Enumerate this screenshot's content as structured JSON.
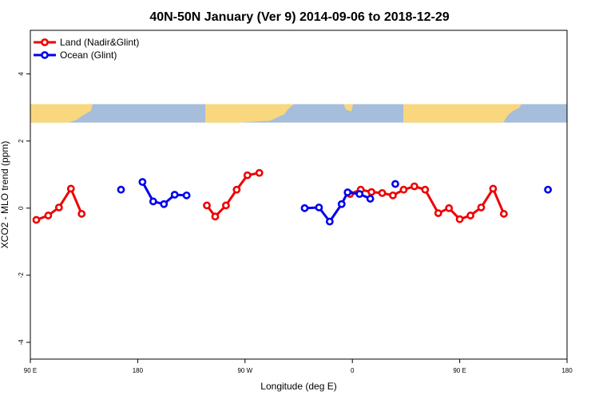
{
  "chart_data": {
    "type": "line",
    "title": "40N-50N January (Ver 9)   2014-09-06 to 2018-12-29",
    "xlabel": "Longitude (deg E)",
    "ylabel": "XCO2 - MLO trend (ppm)",
    "xlim": [
      90,
      540
    ],
    "ylim": [
      -4.5,
      5.3
    ],
    "x_ticks": [
      {
        "value": 90,
        "label": "90 E"
      },
      {
        "value": 180,
        "label": "180"
      },
      {
        "value": 270,
        "label": "90 W"
      },
      {
        "value": 360,
        "label": "0"
      },
      {
        "value": 450,
        "label": "90 E"
      },
      {
        "value": 540,
        "label": "180"
      }
    ],
    "y_ticks": [
      {
        "value": -4,
        "label": "-4"
      },
      {
        "value": -2,
        "label": "-2"
      },
      {
        "value": 0,
        "label": "0"
      },
      {
        "value": 2,
        "label": "2"
      },
      {
        "value": 4,
        "label": "4"
      }
    ],
    "grid": false,
    "legend_position": "top-left",
    "map_strip": {
      "y_range": [
        2.55,
        3.1
      ],
      "land_color": "#f9d77e",
      "ocean_color": "#a6bddb"
    },
    "series": [
      {
        "name": "Land (Nadir&Glint)",
        "color": "#ee0000",
        "segments": [
          [
            [
              95,
              -0.35
            ],
            [
              105,
              -0.22
            ],
            [
              114,
              0.02
            ],
            [
              124,
              0.58
            ],
            [
              133,
              -0.17
            ]
          ],
          [
            [
              238,
              0.08
            ],
            [
              245,
              -0.25
            ],
            [
              254,
              0.08
            ],
            [
              263,
              0.55
            ],
            [
              272,
              0.98
            ],
            [
              282,
              1.05
            ]
          ],
          [
            [
              358,
              0.42
            ],
            [
              367,
              0.55
            ],
            [
              376,
              0.48
            ],
            [
              385,
              0.45
            ],
            [
              394,
              0.38
            ],
            [
              403,
              0.55
            ],
            [
              412,
              0.65
            ],
            [
              421,
              0.55
            ],
            [
              432,
              -0.15
            ],
            [
              441,
              0.0
            ],
            [
              450,
              -0.33
            ],
            [
              459,
              -0.22
            ],
            [
              468,
              0.02
            ],
            [
              478,
              0.58
            ],
            [
              487,
              -0.17
            ]
          ]
        ]
      },
      {
        "name": "Ocean (Glint)",
        "color": "#0000ee",
        "segments": [
          [
            [
              166,
              0.55
            ]
          ],
          [
            [
              184,
              0.78
            ],
            [
              193,
              0.2
            ],
            [
              202,
              0.12
            ],
            [
              211,
              0.4
            ],
            [
              221,
              0.38
            ]
          ],
          [
            [
              320,
              0.0
            ],
            [
              332,
              0.02
            ],
            [
              341,
              -0.4
            ],
            [
              351,
              0.12
            ],
            [
              356,
              0.47
            ],
            [
              366,
              0.42
            ],
            [
              375,
              0.28
            ]
          ],
          [
            [
              396,
              0.72
            ]
          ],
          [
            [
              524,
              0.55
            ]
          ]
        ]
      }
    ]
  }
}
